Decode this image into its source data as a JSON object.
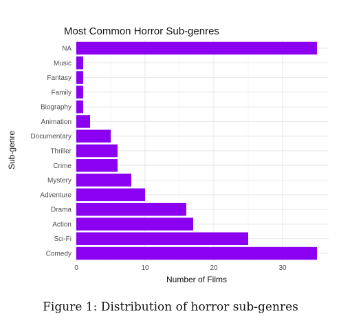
{
  "chart_data": {
    "type": "bar",
    "orientation": "horizontal",
    "title": "Most Common Horror Sub-genres",
    "xlabel": "Number of Films",
    "ylabel": "Sub-genre",
    "categories": [
      "Comedy",
      "Sci-Fi",
      "Action",
      "Drama",
      "Adventure",
      "Mystery",
      "Crime",
      "Thriller",
      "Documentary",
      "Animation",
      "Biography",
      "Family",
      "Fantasy",
      "Music",
      "NA"
    ],
    "values": [
      35,
      25,
      17,
      16,
      10,
      8,
      6,
      6,
      5,
      2,
      1,
      1,
      1,
      1,
      35
    ],
    "xlim": [
      0,
      35
    ],
    "xticks": [
      0,
      10,
      20,
      30
    ],
    "grid": true,
    "bar_color": "#8b00f0"
  },
  "caption": "Figure 1: Distribution of horror sub-genres"
}
